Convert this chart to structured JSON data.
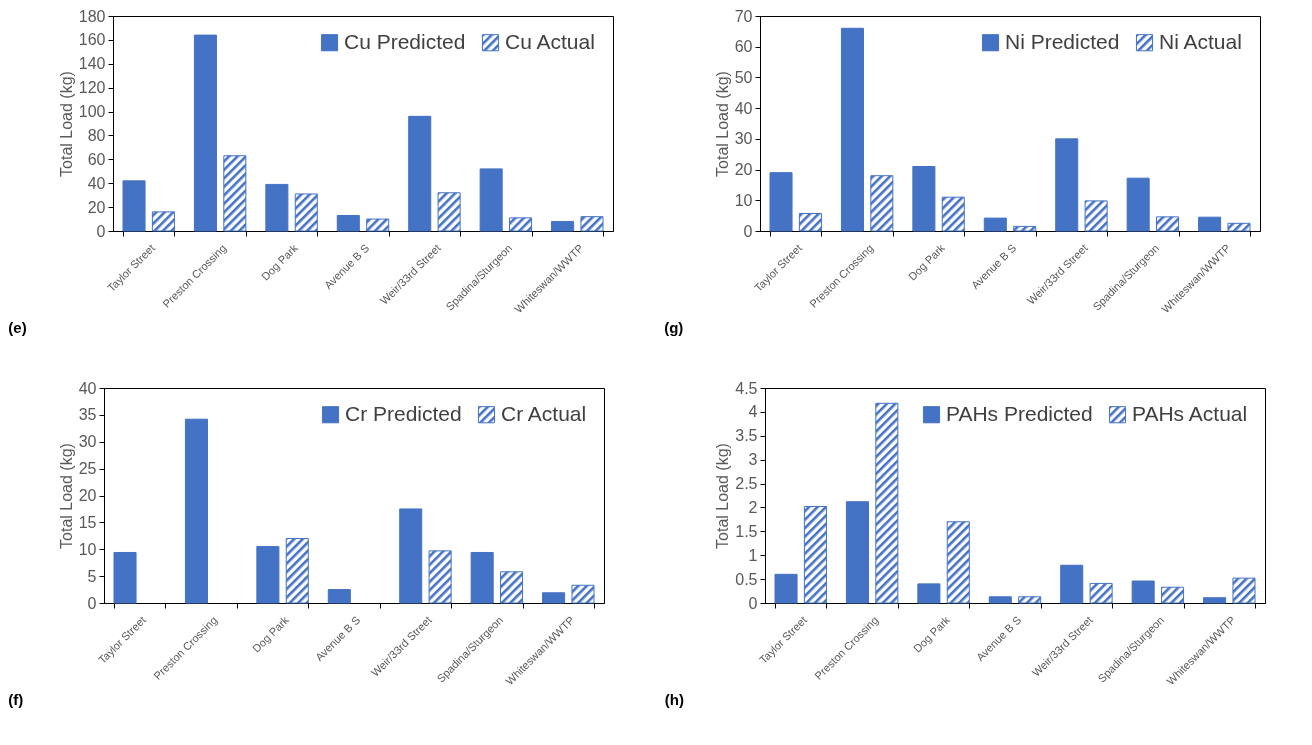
{
  "chart_data": [
    {
      "type": "bar",
      "title": "(e)",
      "ylabel": "Total Load (kg)",
      "categories": [
        "Taylor Street",
        "Preston Crossing",
        "Dog Park",
        "Avenue B S",
        "Weir/33rd Street",
        "Spadina/Sturgeon",
        "Whiteswan/WWTP"
      ],
      "ylim": [
        0,
        180
      ],
      "yticks": [
        0,
        20,
        40,
        60,
        80,
        100,
        120,
        140,
        160,
        180
      ],
      "grid": false,
      "legend": "top right",
      "series": [
        {
          "name": "Cu Predicted",
          "color": "#4472c4",
          "values": [
            42,
            164,
            39,
            13,
            96,
            52,
            8
          ]
        },
        {
          "name": "Cu Actual",
          "color": "#4472c4",
          "values": [
            16,
            63,
            31,
            10,
            32,
            11,
            12
          ]
        }
      ]
    },
    {
      "type": "bar",
      "title": "(g)",
      "ylabel": "Total Load (kg)",
      "categories": [
        "Taylor Street",
        "Preston Crossing",
        "Dog Park",
        "Avenue B S",
        "Weir/33rd Street",
        "Spadina/Sturgeon",
        "Whiteswan/WWTP"
      ],
      "ylim": [
        0,
        70
      ],
      "yticks": [
        0,
        10,
        20,
        30,
        40,
        50,
        60,
        70
      ],
      "grid": false,
      "legend": "top right",
      "series": [
        {
          "name": "Ni Predicted",
          "color": "#4472c4",
          "values": [
            19,
            66,
            21,
            4.2,
            30,
            17.2,
            4.5
          ]
        },
        {
          "name": "Ni Actual",
          "color": "#4472c4",
          "values": [
            5.7,
            18,
            11,
            1.5,
            9.8,
            4.6,
            2.5
          ]
        }
      ]
    },
    {
      "type": "bar",
      "title": "(f)",
      "ylabel": "Total Load (kg)",
      "categories": [
        "Taylor Street",
        "Preston Crossing",
        "Dog Park",
        "Avenue B S",
        "Weir/33rd Street",
        "Spadina/Sturgeon",
        "Whiteswan/WWTP"
      ],
      "ylim": [
        0,
        40
      ],
      "yticks": [
        0,
        5,
        10,
        15,
        20,
        25,
        30,
        35,
        40
      ],
      "grid": false,
      "legend": "top right",
      "series": [
        {
          "name": "Cr Predicted",
          "color": "#4472c4",
          "values": [
            9.4,
            34.2,
            10.5,
            2.5,
            17.5,
            9.4,
            1.9
          ]
        },
        {
          "name": "Cr Actual",
          "color": "#4472c4",
          "values": [
            null,
            null,
            12,
            null,
            9.7,
            5.8,
            3.3
          ]
        }
      ]
    },
    {
      "type": "bar",
      "title": "(h)",
      "ylabel": "Total Load (kg)",
      "categories": [
        "Taylor Street",
        "Preston Crossing",
        "Dog Park",
        "Avenue B S",
        "Weir/33rd Street",
        "Spadina/Sturgeon",
        "Whiteswan/WWTP"
      ],
      "ylim": [
        0,
        4.5
      ],
      "yticks": [
        0,
        0.5,
        1,
        1.5,
        2,
        2.5,
        3,
        3.5,
        4,
        4.5
      ],
      "grid": false,
      "legend": "top right",
      "series": [
        {
          "name": "PAHs Predicted",
          "color": "#4472c4",
          "values": [
            0.6,
            2.12,
            0.4,
            0.13,
            0.79,
            0.46,
            0.11
          ]
        },
        {
          "name": "PAHs Actual",
          "color": "#4472c4",
          "values": [
            2.02,
            4.18,
            1.7,
            0.13,
            0.41,
            0.33,
            0.52
          ]
        }
      ]
    }
  ]
}
